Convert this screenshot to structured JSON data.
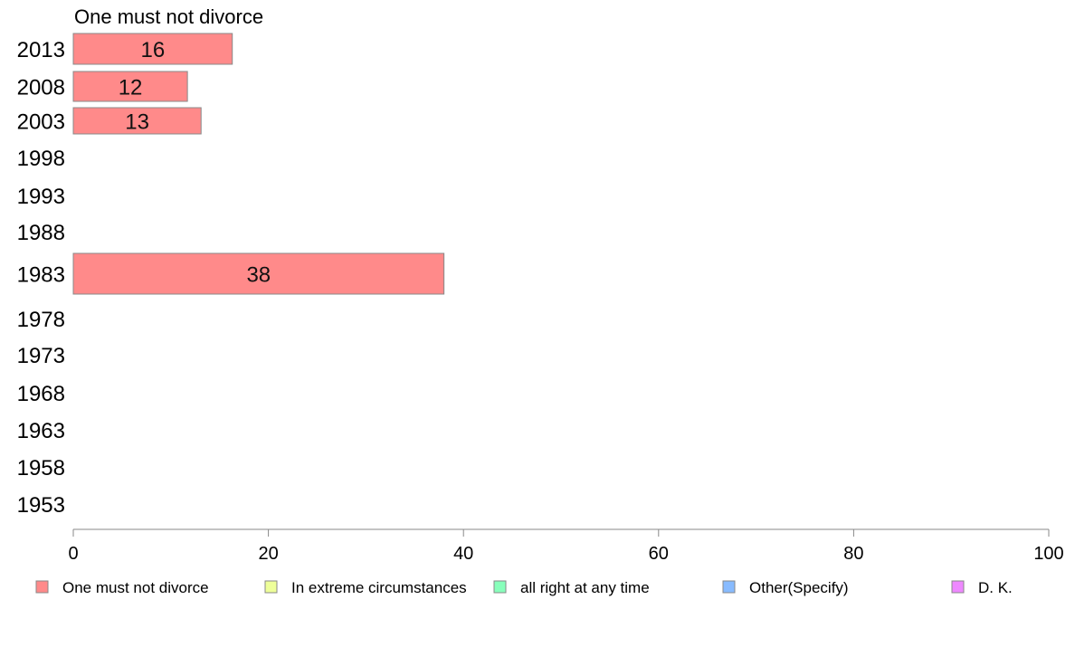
{
  "chart_data": {
    "type": "bar",
    "orientation": "horizontal",
    "series_title": "One must not divorce",
    "categories": [
      "2013",
      "2008",
      "2003",
      "1998",
      "1993",
      "1988",
      "1983",
      "1978",
      "1973",
      "1968",
      "1963",
      "1958",
      "1953"
    ],
    "series": [
      {
        "name": "One must not divorce",
        "color": "#ff8a8a",
        "values": [
          16.3,
          11.7,
          13.1,
          null,
          null,
          null,
          38.0,
          null,
          null,
          null,
          null,
          null,
          null
        ],
        "labels": [
          "16",
          "12",
          "13",
          "",
          "",
          "",
          "38",
          "",
          "",
          "",
          "",
          "",
          ""
        ]
      }
    ],
    "xlim": [
      0,
      100
    ],
    "xticks": [
      "0",
      "20",
      "40",
      "60",
      "80",
      "100"
    ],
    "grid": false,
    "legend_position": "bottom",
    "legend": [
      {
        "label": "One must not divorce",
        "color": "#ff8a8a"
      },
      {
        "label": "In extreme circumstances",
        "color": "#eeff99"
      },
      {
        "label": "all right at any time",
        "color": "#88ffbb"
      },
      {
        "label": "Other(Specify)",
        "color": "#88bbff"
      },
      {
        "label": "D. K.",
        "color": "#ee88ff"
      }
    ]
  }
}
